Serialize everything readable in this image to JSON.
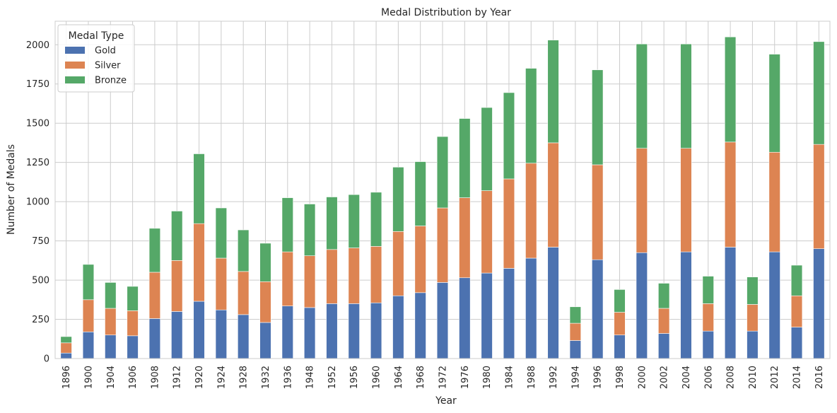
{
  "chart_data": {
    "type": "bar",
    "stacked": true,
    "title": "Medal Distribution by Year",
    "xlabel": "Year",
    "ylabel": "Number of Medals",
    "ylim": [
      0,
      2150
    ],
    "yticks": [
      0,
      250,
      500,
      750,
      1000,
      1250,
      1500,
      1750,
      2000
    ],
    "grid": true,
    "legend": {
      "title": "Medal Type",
      "position": "top-left"
    },
    "categories": [
      "1896",
      "1900",
      "1904",
      "1906",
      "1908",
      "1912",
      "1920",
      "1924",
      "1928",
      "1932",
      "1936",
      "1948",
      "1952",
      "1956",
      "1960",
      "1964",
      "1968",
      "1972",
      "1976",
      "1980",
      "1984",
      "1988",
      "1992",
      "1994",
      "1996",
      "1998",
      "2000",
      "2002",
      "2004",
      "2006",
      "2008",
      "2010",
      "2012",
      "2014",
      "2016"
    ],
    "series": [
      {
        "name": "Gold",
        "color": "#4c72b0",
        "values": [
          35,
          170,
          150,
          145,
          255,
          300,
          365,
          310,
          280,
          230,
          335,
          325,
          350,
          350,
          355,
          400,
          420,
          485,
          515,
          545,
          575,
          640,
          710,
          115,
          630,
          150,
          675,
          160,
          680,
          175,
          710,
          175,
          680,
          200,
          700
        ]
      },
      {
        "name": "Silver",
        "color": "#dd8452",
        "values": [
          65,
          205,
          170,
          160,
          295,
          325,
          495,
          330,
          275,
          260,
          345,
          330,
          345,
          355,
          360,
          410,
          425,
          475,
          510,
          525,
          570,
          605,
          665,
          110,
          605,
          145,
          665,
          160,
          660,
          175,
          670,
          170,
          635,
          200,
          665
        ]
      },
      {
        "name": "Bronze",
        "color": "#55a868",
        "values": [
          40,
          225,
          165,
          155,
          280,
          315,
          445,
          320,
          265,
          245,
          345,
          330,
          335,
          340,
          345,
          410,
          410,
          455,
          505,
          530,
          550,
          605,
          655,
          105,
          605,
          145,
          665,
          160,
          665,
          175,
          670,
          175,
          625,
          195,
          655
        ]
      }
    ]
  }
}
